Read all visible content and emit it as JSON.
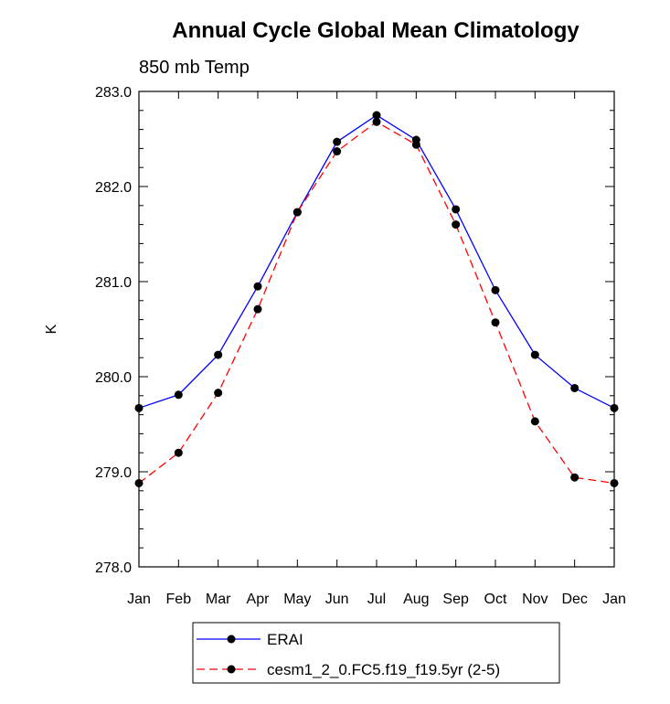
{
  "chart_data": {
    "type": "line",
    "title": "Annual Cycle Global Mean Climatology",
    "subtitle": "850 mb Temp",
    "xlabel": "",
    "ylabel": "K",
    "categories": [
      "Jan",
      "Feb",
      "Mar",
      "Apr",
      "May",
      "Jun",
      "Jul",
      "Aug",
      "Sep",
      "Oct",
      "Nov",
      "Dec",
      "Jan"
    ],
    "ylim": [
      278.0,
      283.0
    ],
    "yticks": [
      "278.0",
      "279.0",
      "280.0",
      "281.0",
      "282.0",
      "283.0"
    ],
    "grid": false,
    "legend": "bottom",
    "series": [
      {
        "name": "ERAI",
        "color": "#0000ff",
        "line_style": "solid",
        "values": [
          279.67,
          279.81,
          280.23,
          280.95,
          281.73,
          282.47,
          282.75,
          282.49,
          281.76,
          280.91,
          280.23,
          279.88,
          279.67
        ]
      },
      {
        "name": "cesm1_2_0.FC5.f19_f19.5yr (2-5)",
        "color": "#ff0000",
        "line_style": "dashed",
        "values": [
          278.88,
          279.2,
          279.83,
          280.71,
          281.73,
          282.37,
          282.68,
          282.44,
          281.6,
          280.57,
          279.53,
          278.94,
          278.88
        ]
      }
    ]
  }
}
